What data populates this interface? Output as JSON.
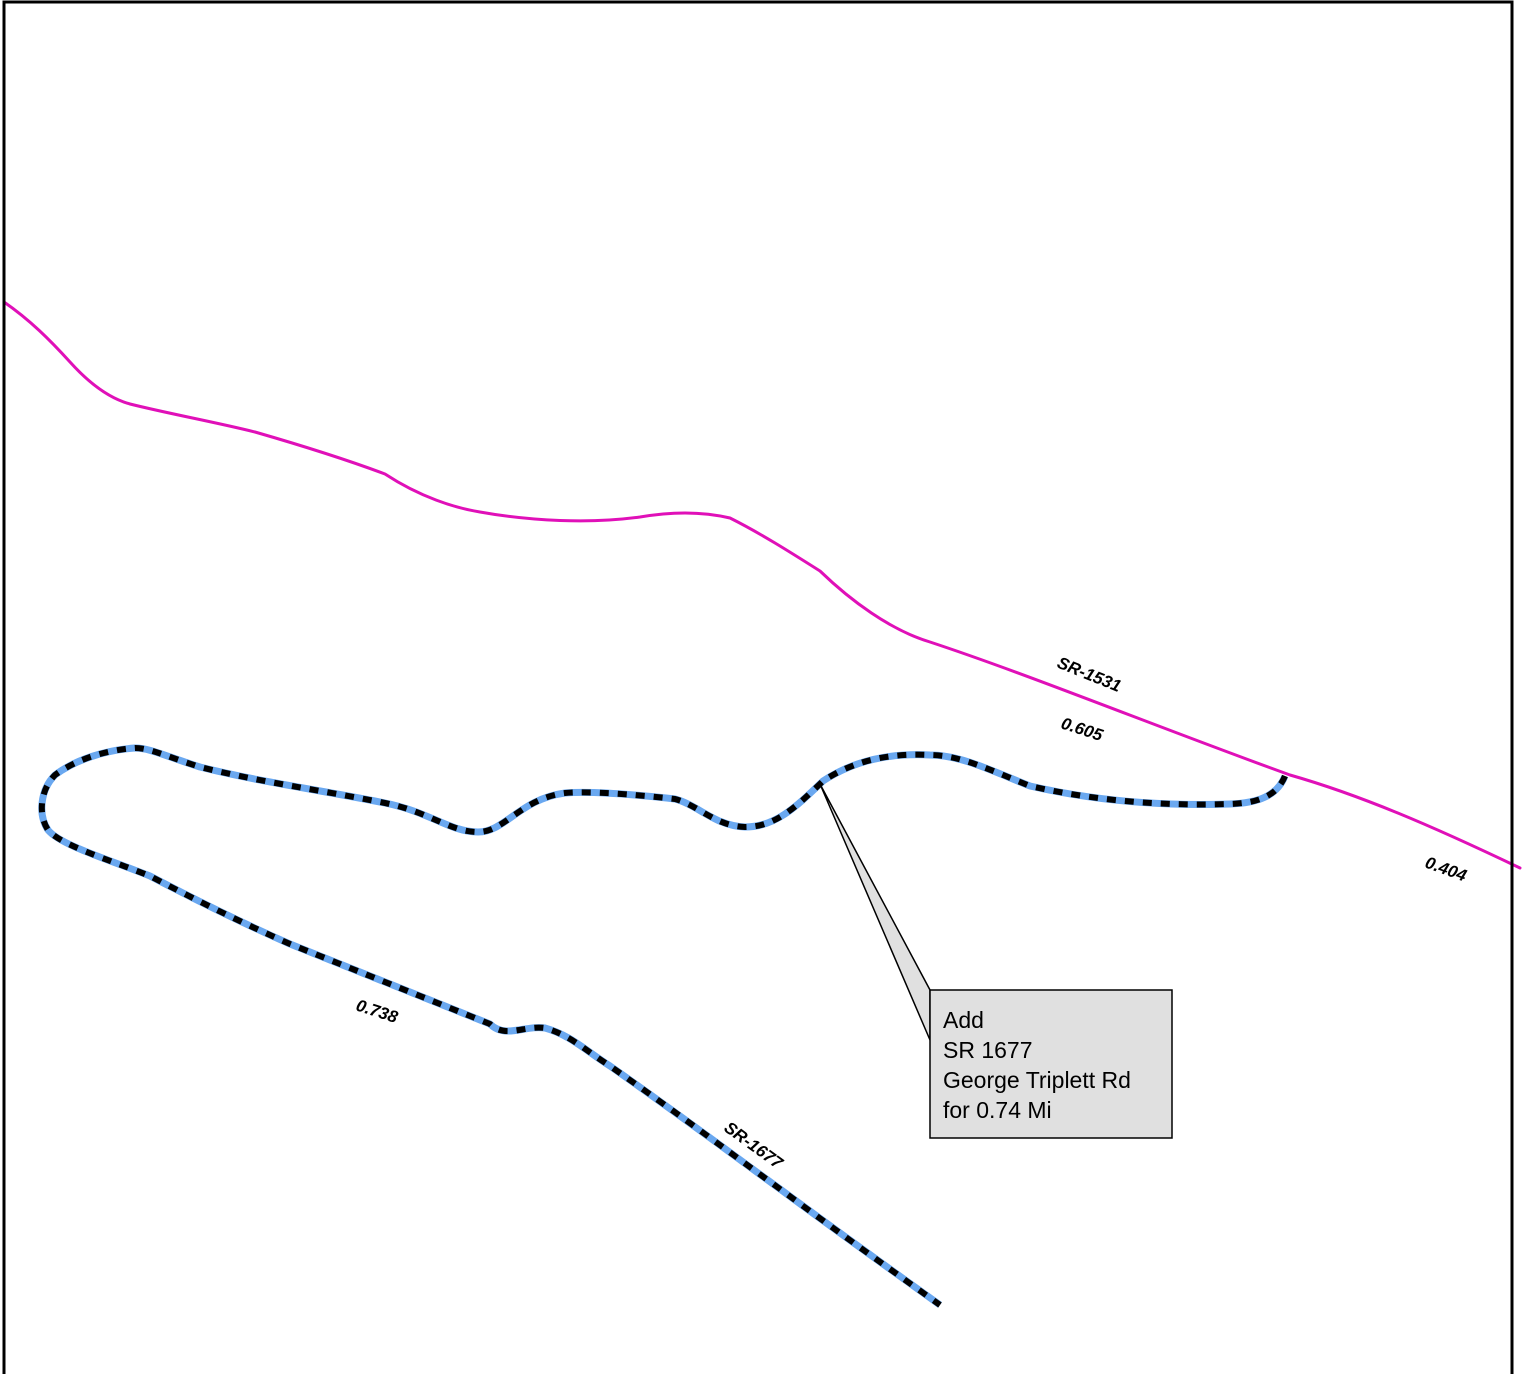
{
  "map": {
    "colors": {
      "background": "#ffffff",
      "frame": "#000000",
      "existing_road": "#e010b8",
      "added_road_base": "#6aa8f0",
      "added_road_dash": "#000000",
      "callout_fill": "#e0e0e0",
      "callout_border": "#000000"
    },
    "roads": [
      {
        "id": "SR-1531",
        "label": "SR-1531",
        "segment_lengths": [
          "0.605",
          "0.404"
        ],
        "style": "existing"
      },
      {
        "id": "SR-1677",
        "label": "SR-1677",
        "segment_lengths": [
          "0.738"
        ],
        "style": "added"
      }
    ],
    "callout": {
      "lines": [
        "Add",
        "SR 1677",
        "George Triplett Rd",
        "for 0.74 Mi"
      ]
    }
  }
}
